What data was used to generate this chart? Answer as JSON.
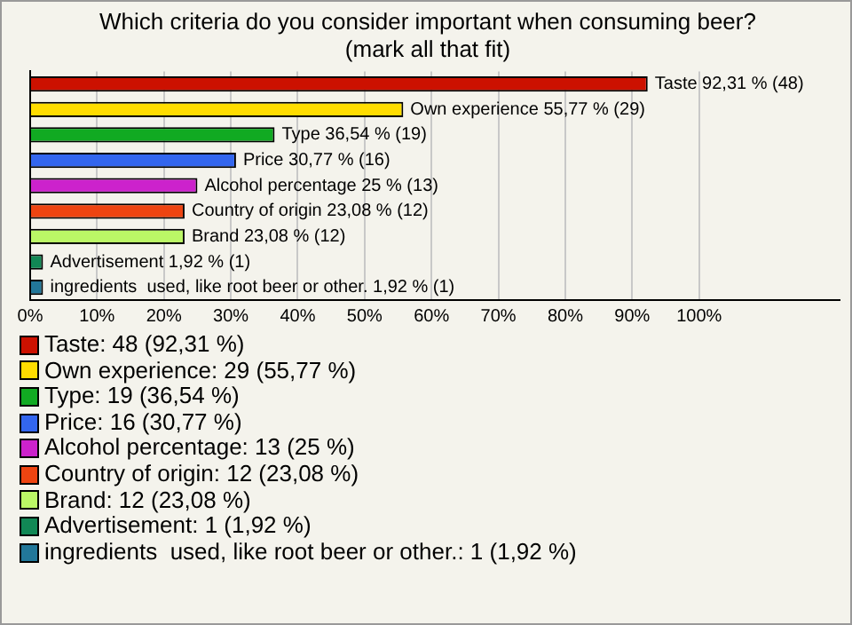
{
  "chart_data": {
    "type": "bar",
    "orientation": "horizontal",
    "title": "Which criteria do you consider important when consuming beer?\n(mark all that fit)",
    "categories": [
      "Taste",
      "Own experience",
      "Type",
      "Price",
      "Alcohol percentage",
      "Country of origin",
      "Brand",
      "Advertisement",
      "ingredients  used, like root beer or other."
    ],
    "values": [
      92.31,
      55.77,
      36.54,
      30.77,
      25,
      23.08,
      23.08,
      1.92,
      1.92
    ],
    "colors": [
      "#cc1100",
      "#ffdd00",
      "#11aa22",
      "#3366ee",
      "#cc22cc",
      "#ee4411",
      "#bbf766",
      "#118855",
      "#227799"
    ],
    "value_labels": [
      "92,31 % (48)",
      "55,77 % (29)",
      "36,54 % (19)",
      "30,77 % (16)",
      "25 % (13)",
      "23,08 % (12)",
      "23,08 % (12)",
      "1,92 % (1)",
      "1,92 % (1)"
    ],
    "xlim": [
      0,
      121
    ],
    "xticks": [
      {
        "value": 0,
        "label": "0%"
      },
      {
        "value": 10,
        "label": "10%"
      },
      {
        "value": 20,
        "label": "20%"
      },
      {
        "value": 30,
        "label": "30%"
      },
      {
        "value": 40,
        "label": "40%"
      },
      {
        "value": 50,
        "label": "50%"
      },
      {
        "value": 60,
        "label": "60%"
      },
      {
        "value": 70,
        "label": "70%"
      },
      {
        "value": 80,
        "label": "80%"
      },
      {
        "value": 90,
        "label": "90%"
      },
      {
        "value": 100,
        "label": "100%"
      }
    ],
    "grid": "x",
    "tick_labels": "x",
    "annotations": [
      "Taste: 48 (92,31 %)",
      "Own experience: 29 (55,77 %)",
      "Type: 19 (36,54 %)",
      "Price: 16 (30,77 %)",
      "Alcohol percentage: 13 (25 %)",
      "Country of origin: 12 (23,08 %)",
      "Brand: 12 (23,08 %)",
      "Advertisement: 1 (1,92 %)",
      "ingredients  used, like root beer or other.: 1 (1,92 %)"
    ]
  }
}
